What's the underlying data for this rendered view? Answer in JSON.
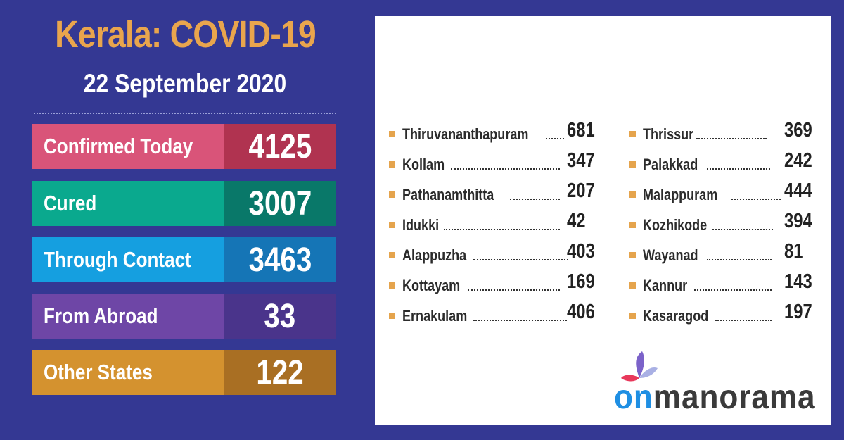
{
  "header": {
    "title": "Kerala: COVID-19",
    "date": "22 September 2020"
  },
  "stats": [
    {
      "label": "Confirmed Today",
      "value": "4125",
      "color_left": "#d95479",
      "color_right": "#b03350"
    },
    {
      "label": "Cured",
      "value": "3007",
      "color_left": "#0aa98e",
      "color_right": "#097869"
    },
    {
      "label": "Through Contact",
      "value": "3463",
      "color_left": "#159fe0",
      "color_right": "#1575b6"
    },
    {
      "label": "From Abroad",
      "value": "33",
      "color_left": "#6e46a6",
      "color_right": "#4a348b"
    },
    {
      "label": "Other States",
      "value": "122",
      "color_left": "#d4922f",
      "color_right": "#a96f23"
    }
  ],
  "districts_left": [
    {
      "name": "Thiruvananthapuram",
      "value": "681"
    },
    {
      "name": "Kollam",
      "value": "347"
    },
    {
      "name": "Pathanamthitta",
      "value": "207"
    },
    {
      "name": "Idukki",
      "value": "42"
    },
    {
      "name": "Alappuzha",
      "value": "403"
    },
    {
      "name": "Kottayam",
      "value": "169"
    },
    {
      "name": "Ernakulam",
      "value": "406"
    }
  ],
  "districts_right": [
    {
      "name": "Thrissur",
      "value": "369"
    },
    {
      "name": "Palakkad",
      "value": "242"
    },
    {
      "name": "Malappuram",
      "value": "444"
    },
    {
      "name": "Kozhikode",
      "value": "394"
    },
    {
      "name": "Wayanad",
      "value": "81"
    },
    {
      "name": "Kannur",
      "value": "143"
    },
    {
      "name": "Kasaragod",
      "value": "197"
    }
  ],
  "logo": {
    "on": "on",
    "rest": "manorama"
  },
  "colors": {
    "background": "#343893",
    "title": "#e9a54d",
    "bullet": "#e5a44d"
  }
}
